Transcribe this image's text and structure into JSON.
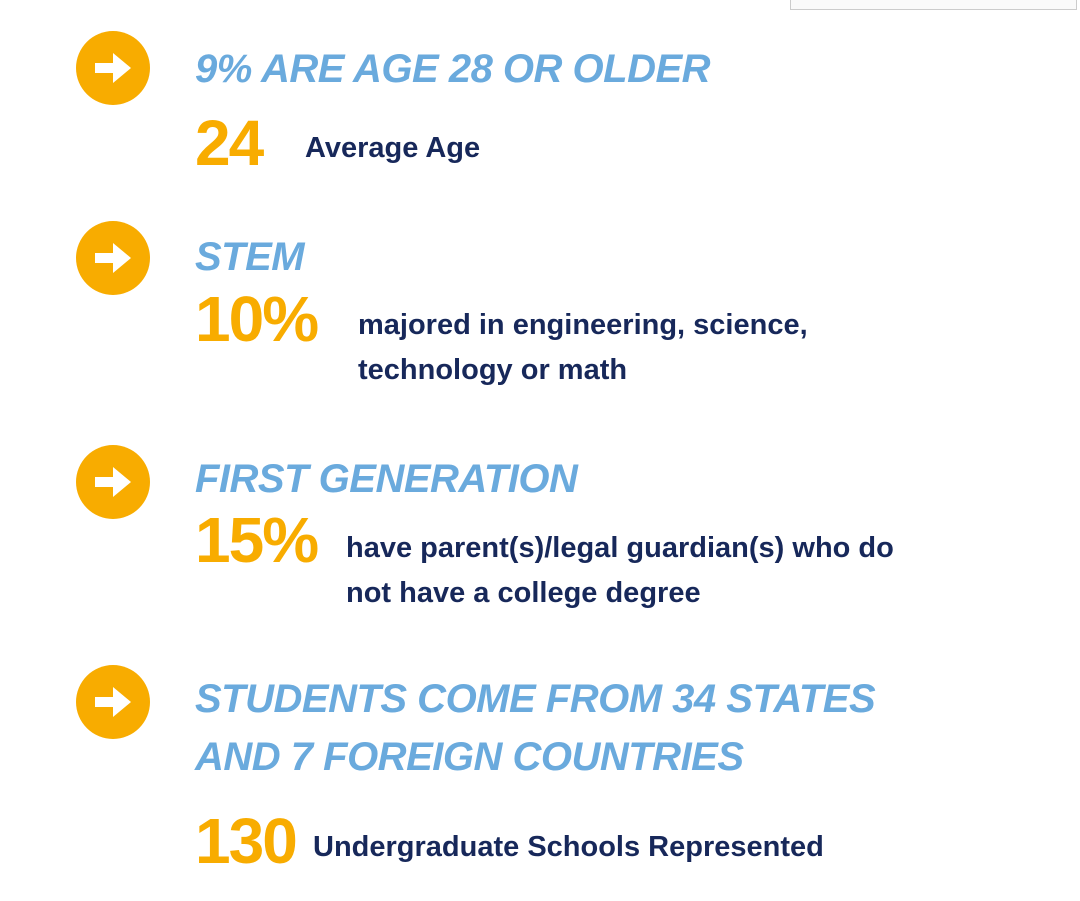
{
  "items": [
    {
      "heading": [
        "9% ARE AGE 28 OR OLDER"
      ],
      "stat": "24",
      "text": [
        "Average Age"
      ]
    },
    {
      "heading": [
        "STEM"
      ],
      "stat": "10%",
      "text": [
        "majored in engineering, science,",
        "technology or math"
      ]
    },
    {
      "heading": [
        "FIRST GENERATION"
      ],
      "stat": "15%",
      "text": [
        "have parent(s)/legal guardian(s) who do",
        "not have a college degree"
      ]
    },
    {
      "heading": [
        "STUDENTS COME FROM 34 STATES",
        "AND 7 FOREIGN COUNTRIES"
      ],
      "stat": "130",
      "text": [
        "Undergraduate Schools Represented"
      ]
    }
  ]
}
